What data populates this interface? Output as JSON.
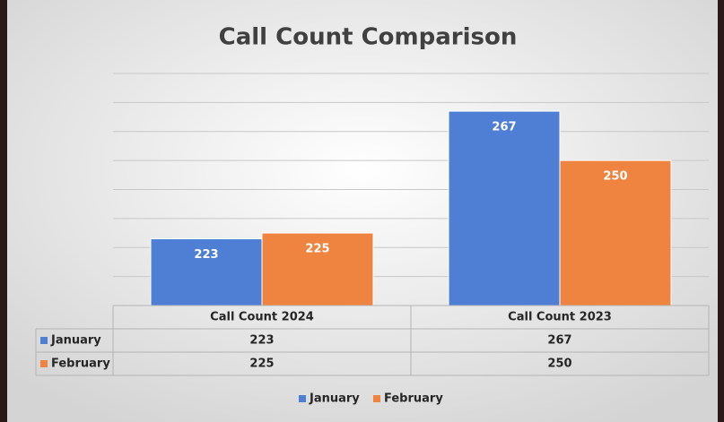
{
  "chart_data": {
    "type": "bar",
    "title": "Call Count Comparison",
    "categories": [
      "Call Count 2024",
      "Call Count 2023"
    ],
    "series": [
      {
        "name": "January",
        "color": "#4f7fd4",
        "values": [
          223,
          267
        ]
      },
      {
        "name": "February",
        "color": "#ee8440",
        "values": [
          225,
          250
        ]
      }
    ],
    "ylim": [
      200,
      280
    ],
    "yticks": [
      200,
      210,
      220,
      230,
      240,
      250,
      260,
      270,
      280
    ],
    "grid": true,
    "data_table": true,
    "legend": "bottom"
  }
}
